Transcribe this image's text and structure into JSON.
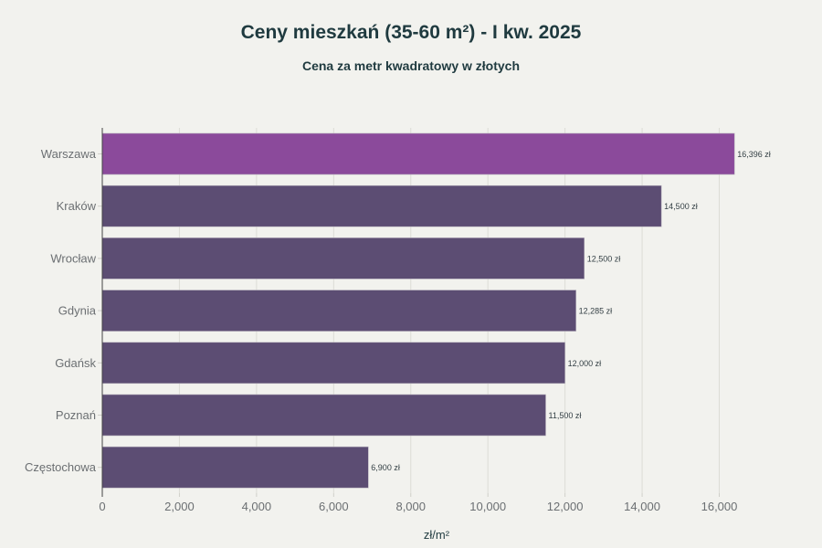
{
  "chart_data": {
    "type": "bar",
    "orientation": "horizontal",
    "title": "Ceny mieszkań (35-60 m²) - I kw. 2025",
    "subtitle": "Cena za metr kwadratowy w złotych",
    "xlabel": "zł/m²",
    "ylabel": "",
    "categories": [
      "Warszawa",
      "Kraków",
      "Wrocław",
      "Gdynia",
      "Gdańsk",
      "Poznań",
      "Częstochowa"
    ],
    "values": [
      16396,
      14500,
      12500,
      12285,
      12000,
      11500,
      6900
    ],
    "value_labels": [
      "16,396 zł",
      "14,500 zł",
      "12,500 zł",
      "12,285 zł",
      "12,000 zł",
      "11,500 zł",
      "6,900 zł"
    ],
    "highlight_category": "Warszawa",
    "colors": {
      "highlight": "#8b4a9b",
      "default": "#5c4d73"
    },
    "xlim": [
      0,
      18000
    ],
    "xticks": [
      0,
      2000,
      4000,
      6000,
      8000,
      10000,
      12000,
      14000,
      16000
    ],
    "xtick_labels": [
      "0",
      "2,000",
      "4,000",
      "6,000",
      "8,000",
      "10,000",
      "12,000",
      "14,000",
      "16,000"
    ],
    "grid": "vertical",
    "legend": "none"
  }
}
